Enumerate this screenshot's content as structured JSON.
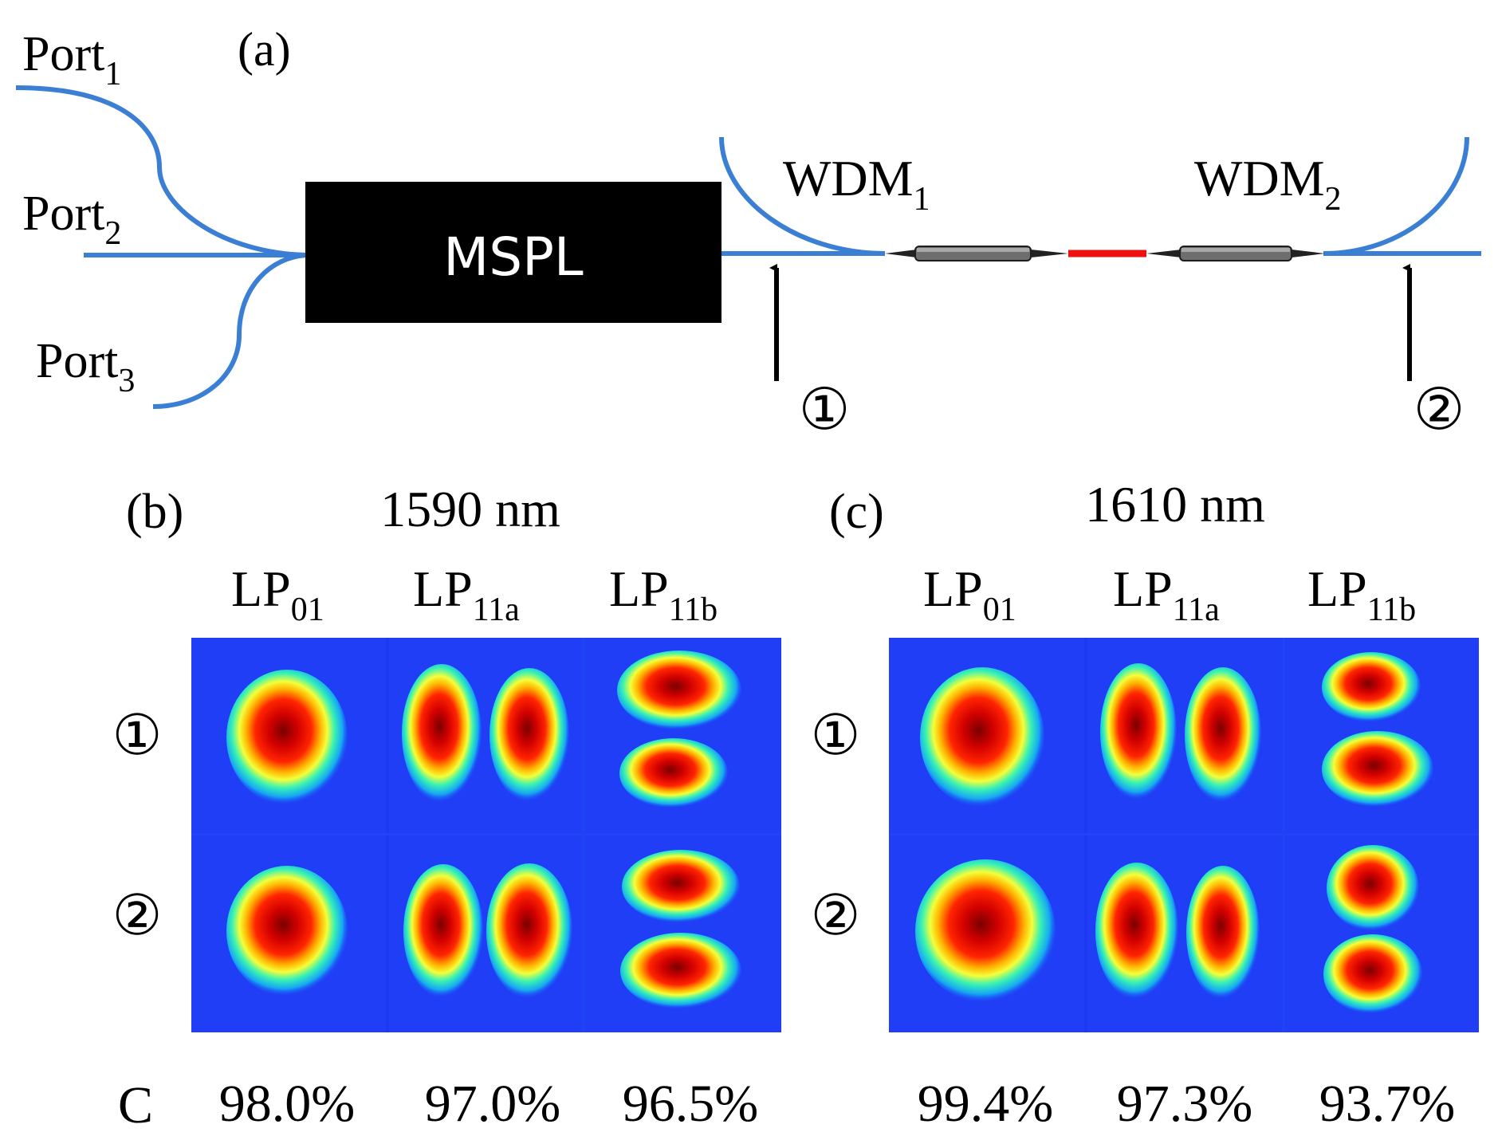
{
  "colors": {
    "fiber": "#3b7fd4",
    "box": "#000000",
    "red_segment": "#ee1111",
    "background_field": "#1f3ef5",
    "text": "#000000"
  },
  "panel_a": {
    "label": "(a)",
    "ports": [
      {
        "base": "Port",
        "sub": "1"
      },
      {
        "base": "Port",
        "sub": "2"
      },
      {
        "base": "Port",
        "sub": "3"
      }
    ],
    "box_label": "MSPL",
    "wdms": [
      {
        "base": "WDM",
        "sub": "1"
      },
      {
        "base": "WDM",
        "sub": "2"
      }
    ],
    "markers": [
      "①",
      "②"
    ]
  },
  "panel_b": {
    "label": "(b)",
    "wavelength": "1590 nm",
    "modes": [
      {
        "base": "LP",
        "sub": "01"
      },
      {
        "base": "LP",
        "sub": "11a"
      },
      {
        "base": "LP",
        "sub": "11b"
      }
    ],
    "row_labels": [
      "①",
      "②"
    ]
  },
  "panel_c": {
    "label": "(c)",
    "wavelength": "1610 nm",
    "modes": [
      {
        "base": "LP",
        "sub": "01"
      },
      {
        "base": "LP",
        "sub": "11a"
      },
      {
        "base": "LP",
        "sub": "11b"
      }
    ],
    "row_labels": [
      "①",
      "②"
    ]
  },
  "correlation": {
    "label": "C",
    "values_b": [
      "98.0%",
      "97.0%",
      "96.5%"
    ],
    "values_c": [
      "99.4%",
      "97.3%",
      "93.7%"
    ]
  }
}
